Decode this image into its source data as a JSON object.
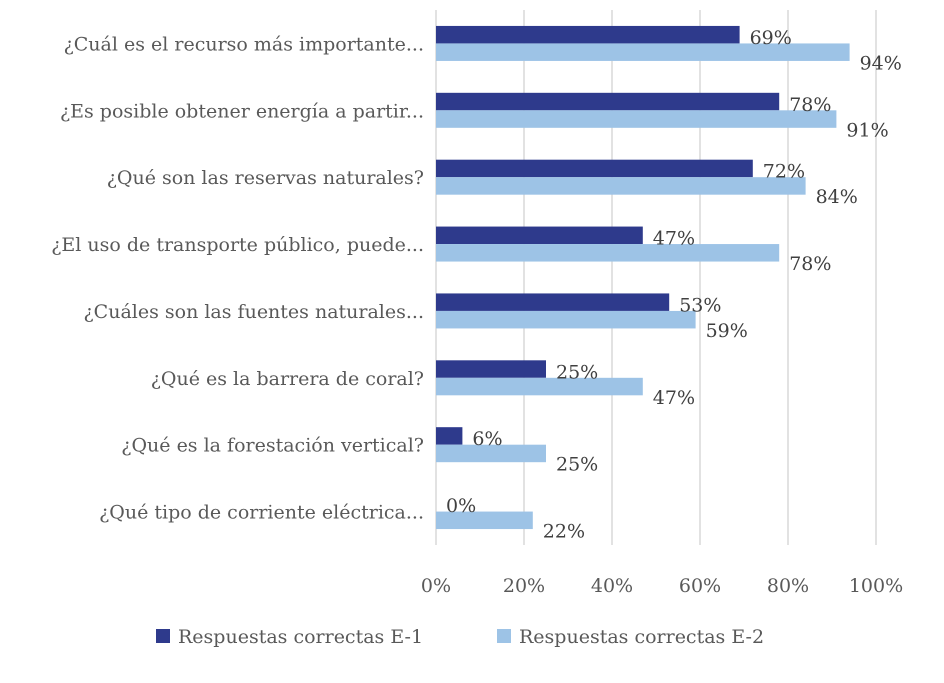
{
  "chart_data": {
    "type": "bar",
    "orientation": "horizontal",
    "title": "",
    "xlabel": "",
    "ylabel": "",
    "xlim": [
      0,
      100
    ],
    "x_ticks": [
      "0%",
      "20%",
      "40%",
      "60%",
      "80%",
      "100%"
    ],
    "x_tick_values": [
      0,
      20,
      40,
      60,
      80,
      100
    ],
    "grid": true,
    "legend_position": "bottom",
    "categories": [
      "¿Cuál es el recurso más importante...",
      "¿Es posible obtener energía a partir...",
      "¿Qué son las reservas naturales?",
      "¿El uso de transporte público, puede...",
      "¿Cuáles son las fuentes naturales...",
      "¿Qué es la barrera de coral?",
      "¿Qué es la forestación vertical?",
      "¿Qué tipo de corriente eléctrica..."
    ],
    "series": [
      {
        "name": "Respuestas correctas E-1",
        "color": "#2e3a8c",
        "values": [
          69,
          78,
          72,
          47,
          53,
          25,
          6,
          0
        ],
        "labels": [
          "69%",
          "78%",
          "72%",
          "47%",
          "53%",
          "25%",
          "6%",
          "0%"
        ]
      },
      {
        "name": "Respuestas correctas E-2",
        "color": "#9dc3e6",
        "values": [
          94,
          91,
          84,
          78,
          59,
          47,
          25,
          22
        ],
        "labels": [
          "94%",
          "91%",
          "84%",
          "78%",
          "59%",
          "47%",
          "25%",
          "22%"
        ]
      }
    ]
  }
}
